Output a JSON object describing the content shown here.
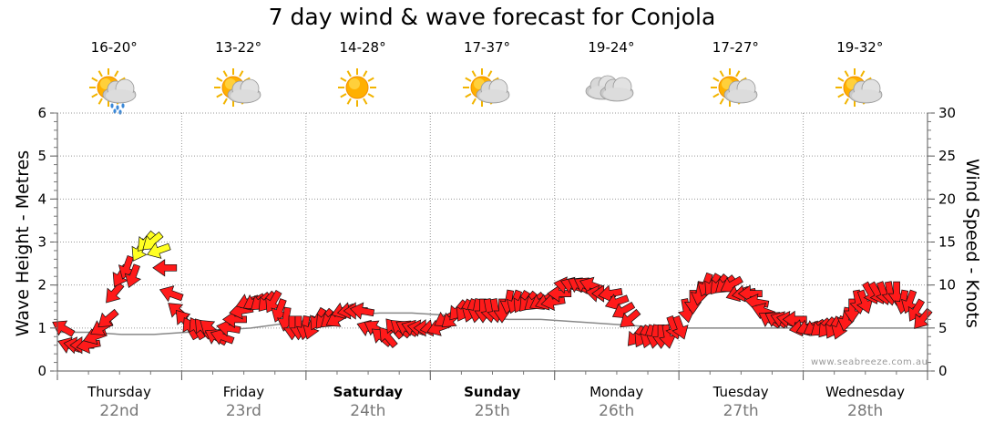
{
  "title": "7 day wind & wave forecast for Conjola",
  "watermark": "www.seabreeze.com.au",
  "days": [
    {
      "name": "Thursday",
      "date": "22nd",
      "bold": false,
      "temp": "16-20°",
      "icon": "sun-cloud-rain-icon"
    },
    {
      "name": "Friday",
      "date": "23rd",
      "bold": false,
      "temp": "13-22°",
      "icon": "sun-cloud-icon"
    },
    {
      "name": "Saturday",
      "date": "24th",
      "bold": true,
      "temp": "14-28°",
      "icon": "sun-icon"
    },
    {
      "name": "Sunday",
      "date": "25th",
      "bold": true,
      "temp": "17-37°",
      "icon": "sun-cloud-icon"
    },
    {
      "name": "Monday",
      "date": "26th",
      "bold": false,
      "temp": "19-24°",
      "icon": "cloud-icon"
    },
    {
      "name": "Tuesday",
      "date": "27th",
      "bold": false,
      "temp": "17-27°",
      "icon": "sun-cloud-icon"
    },
    {
      "name": "Wednesday",
      "date": "28th",
      "bold": false,
      "temp": "19-32°",
      "icon": "sun-cloud-icon"
    }
  ],
  "colors": {
    "arrow": "#ff1a1a",
    "arrow_light": "#ffff22",
    "grid": "#999999",
    "wave_line": "#888888"
  },
  "chart_data": {
    "type": "line",
    "ylabel": "Wave Height - Metres",
    "y2label": "Wind Speed - Knots",
    "ylim": [
      0,
      6
    ],
    "yticks": [
      "0",
      "1",
      "2",
      "3",
      "4",
      "5",
      "6"
    ],
    "y2lim": [
      0,
      30
    ],
    "y2ticks": [
      "0",
      "5",
      "10",
      "15",
      "20",
      "25",
      "30"
    ],
    "grid": true,
    "wave_height_m": [
      0.9,
      0.9,
      0.85,
      0.85,
      0.9,
      0.95,
      1.0,
      1.1,
      1.2,
      1.3,
      1.35,
      1.35,
      1.3,
      1.25,
      1.2,
      1.2,
      1.15,
      1.1,
      1.05,
      1.0,
      1.0,
      1.0,
      1.0,
      1.0,
      1.0,
      1.0,
      1.0,
      1.0
    ],
    "wind": {
      "name": "Wind",
      "speed_kn": [
        5,
        3,
        3,
        3,
        3,
        4,
        5,
        6,
        9,
        11,
        12,
        11,
        14,
        15,
        15,
        14,
        12,
        9,
        7,
        6,
        5,
        5,
        5,
        5,
        4,
        4,
        5,
        6,
        7,
        8,
        8,
        8,
        8,
        8,
        7,
        6,
        5,
        5,
        5,
        5,
        6,
        6,
        6,
        6,
        7,
        7,
        7,
        7,
        5,
        5,
        4,
        4,
        5,
        5,
        5,
        5,
        5,
        5,
        5,
        5,
        6,
        6,
        7,
        7,
        7,
        7,
        7,
        7,
        7,
        7,
        8,
        8,
        8,
        8,
        8,
        8,
        8,
        8,
        9,
        10,
        10,
        10,
        10,
        10,
        9,
        9,
        9,
        8,
        7,
        6,
        4,
        4,
        4,
        4,
        4,
        4,
        5,
        5,
        7,
        8,
        9,
        10,
        10,
        10,
        10,
        10,
        9,
        9,
        9,
        8,
        7,
        6,
        6,
        6,
        6,
        6,
        5,
        5,
        5,
        5,
        5,
        5,
        5,
        6,
        7,
        8,
        8,
        9,
        9,
        9,
        9,
        9,
        8,
        8,
        7,
        6
      ],
      "direction_deg": [
        300,
        290,
        280,
        270,
        260,
        250,
        240,
        230,
        220,
        210,
        200,
        200,
        210,
        220,
        230,
        250,
        270,
        290,
        310,
        320,
        330,
        330,
        320,
        310,
        300,
        290,
        280,
        270,
        260,
        250,
        240,
        230,
        220,
        210,
        200,
        190,
        180,
        180,
        190,
        200,
        210,
        220,
        230,
        240,
        250,
        260,
        270,
        280,
        290,
        300,
        310,
        320,
        320,
        310,
        300,
        290,
        280,
        270,
        260,
        250,
        240,
        230,
        220,
        210,
        200,
        190,
        180,
        170,
        170,
        180,
        190,
        200,
        210,
        220,
        230,
        240,
        250,
        260,
        270,
        280,
        290,
        300,
        300,
        290,
        280,
        270,
        260,
        250,
        240,
        230,
        220,
        210,
        200,
        190,
        180,
        170,
        160,
        160,
        170,
        180,
        190,
        200,
        210,
        220,
        230,
        240,
        250,
        260,
        270,
        280,
        290,
        300,
        300,
        290,
        280,
        270,
        260,
        250,
        240,
        230,
        220,
        210,
        200,
        190,
        180,
        170,
        160,
        150,
        150,
        160,
        170,
        180,
        190,
        200,
        210,
        220
      ]
    }
  }
}
